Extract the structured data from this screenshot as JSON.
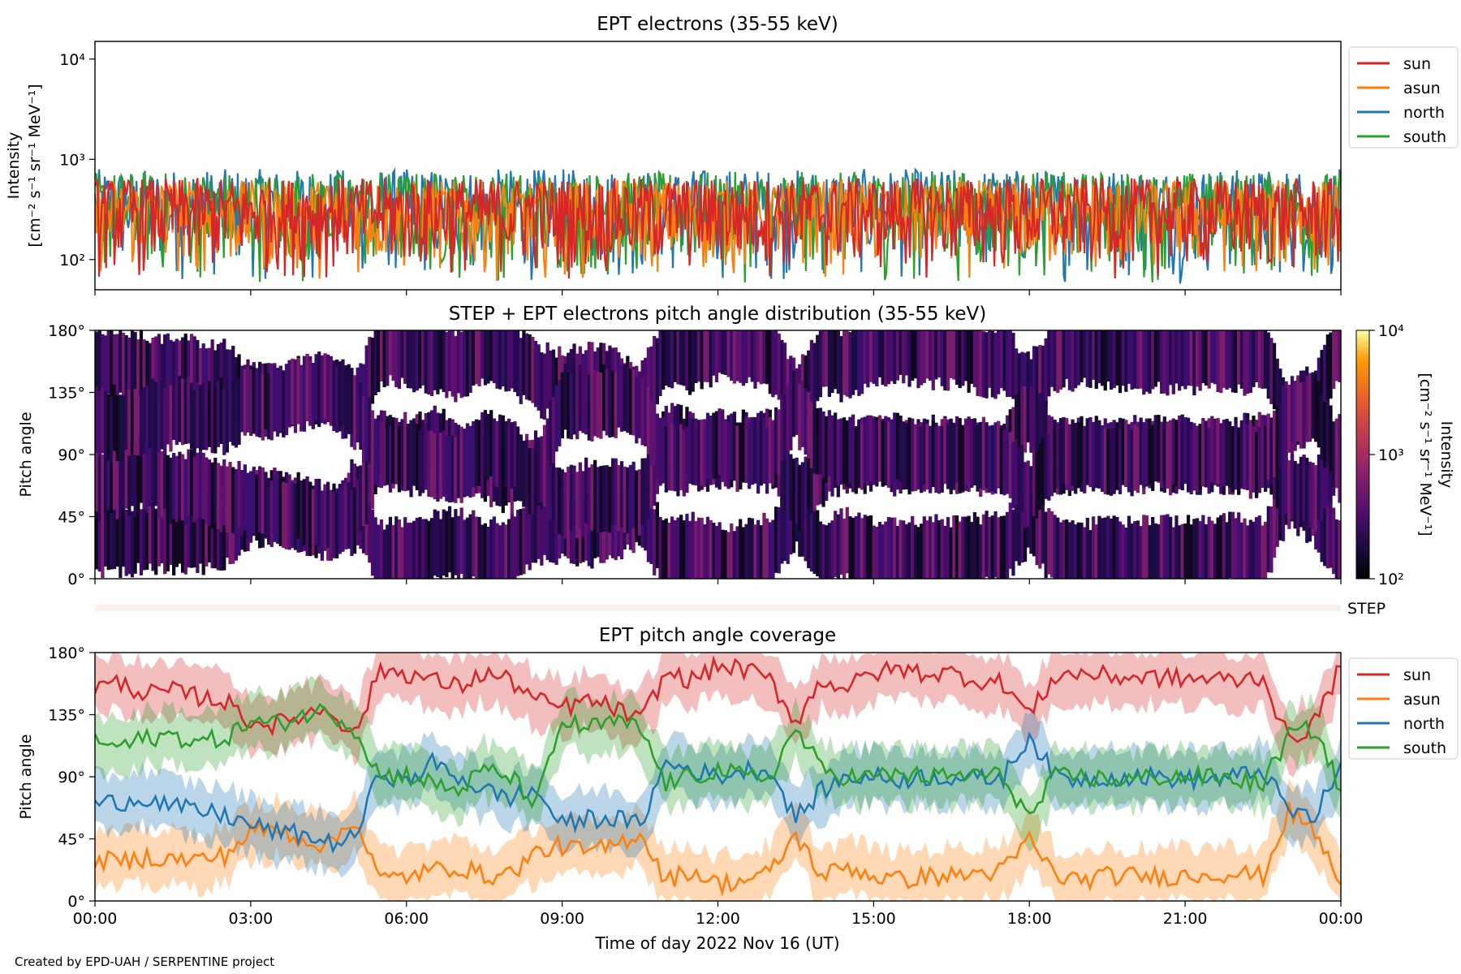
{
  "figure": {
    "footer": "Created by EPD-UAH / SERPENTINE project",
    "xlabel": "Time of day 2022 Nov 16 (UT)",
    "x_ticks": [
      "00:00",
      "03:00",
      "06:00",
      "09:00",
      "12:00",
      "15:00",
      "18:00",
      "21:00",
      "00:00"
    ]
  },
  "chart_data": [
    {
      "type": "line",
      "title": "EPT electrons (35-55 keV)",
      "ylabel_line1": "Intensity",
      "ylabel_line2": "[cm⁻² s⁻¹ sr⁻¹ MeV⁻¹]",
      "yscale": "log",
      "ylim": [
        50,
        15000
      ],
      "y_ticks": [
        {
          "v": 100,
          "label": "10²"
        },
        {
          "v": 1000,
          "label": "10³"
        },
        {
          "v": 10000,
          "label": "10⁴"
        }
      ],
      "xlim_hours": [
        0,
        24
      ],
      "legend_position": "outside-right-top",
      "series": [
        {
          "name": "sun",
          "color": "#d62728",
          "typical_range": [
            60,
            650
          ]
        },
        {
          "name": "asun",
          "color": "#ff7f0e",
          "typical_range": [
            60,
            620
          ]
        },
        {
          "name": "north",
          "color": "#1f77b4",
          "typical_range": [
            55,
            800
          ]
        },
        {
          "name": "south",
          "color": "#2ca02c",
          "typical_range": [
            55,
            750
          ]
        }
      ]
    },
    {
      "type": "heatmap",
      "title": "STEP + EPT electrons pitch angle distribution (35-55 keV)",
      "ylabel": "Pitch angle",
      "ylim": [
        0,
        180
      ],
      "y_ticks": [
        "0°",
        "45°",
        "90°",
        "135°",
        "180°"
      ],
      "colorbar": {
        "label_line1": "Intensity",
        "label_line2": "[cm⁻² s⁻¹ sr⁻¹ MeV⁻¹]",
        "scale": "log",
        "range": [
          100,
          10000
        ],
        "ticks": [
          "10²",
          "10³",
          "10⁴"
        ],
        "colormap": "inferno"
      },
      "typical_intensity": 150,
      "step_label": "STEP"
    },
    {
      "type": "area",
      "title": "EPT pitch angle coverage",
      "ylabel": "Pitch angle",
      "ylim": [
        0,
        180
      ],
      "y_ticks": [
        "0°",
        "45°",
        "90°",
        "135°",
        "180°"
      ],
      "xlim_hours": [
        0,
        24
      ],
      "legend_position": "outside-right-top",
      "series": [
        {
          "name": "sun",
          "color": "#d62728",
          "x": [
            0,
            0.5,
            1,
            1.5,
            2,
            2.5,
            3,
            3.5,
            4,
            4.5,
            5,
            5.5,
            6,
            6.5,
            7,
            7.5,
            8,
            8.5,
            9,
            9.5,
            10,
            10.5,
            11,
            11.5,
            12,
            12.5,
            13,
            13.5,
            14,
            14.5,
            15,
            15.5,
            16,
            16.5,
            17,
            17.5,
            18,
            18.5,
            19,
            19.5,
            20,
            20.5,
            21,
            21.5,
            22,
            22.5,
            23,
            23.5,
            24
          ],
          "y": [
            155,
            158,
            150,
            152,
            148,
            145,
            130,
            128,
            135,
            140,
            120,
            168,
            165,
            160,
            155,
            165,
            160,
            145,
            140,
            145,
            140,
            130,
            165,
            160,
            170,
            168,
            160,
            130,
            160,
            155,
            165,
            168,
            165,
            165,
            160,
            158,
            135,
            163,
            165,
            163,
            162,
            162,
            161,
            161,
            160,
            163,
            115,
            130,
            170
          ]
        },
        {
          "name": "asun",
          "color": "#ff7f0e",
          "x": [
            0,
            0.5,
            1,
            1.5,
            2,
            2.5,
            3,
            3.5,
            4,
            4.5,
            5,
            5.5,
            6,
            6.5,
            7,
            7.5,
            8,
            8.5,
            9,
            9.5,
            10,
            10.5,
            11,
            11.5,
            12,
            12.5,
            13,
            13.5,
            14,
            14.5,
            15,
            15.5,
            16,
            16.5,
            17,
            17.5,
            18,
            18.5,
            19,
            19.5,
            20,
            20.5,
            21,
            21.5,
            22,
            22.5,
            23,
            23.5,
            24
          ],
          "y": [
            30,
            28,
            32,
            30,
            30,
            33,
            50,
            52,
            45,
            40,
            60,
            15,
            18,
            22,
            25,
            18,
            20,
            35,
            40,
            35,
            40,
            50,
            15,
            22,
            12,
            15,
            20,
            48,
            18,
            25,
            18,
            15,
            18,
            18,
            20,
            22,
            45,
            18,
            15,
            18,
            18,
            18,
            18,
            20,
            20,
            18,
            65,
            50,
            12
          ]
        },
        {
          "name": "north",
          "color": "#1f77b4",
          "x": [
            0,
            0.5,
            1,
            1.5,
            2,
            2.5,
            3,
            3.5,
            4,
            4.5,
            5,
            5.5,
            6,
            6.5,
            7,
            7.5,
            8,
            8.5,
            9,
            9.5,
            10,
            10.5,
            11,
            11.5,
            12,
            12.5,
            13,
            13.5,
            14,
            14.5,
            15,
            15.5,
            16,
            16.5,
            17,
            17.5,
            18,
            18.5,
            19,
            19.5,
            20,
            20.5,
            21,
            21.5,
            22,
            22.5,
            23,
            23.5,
            24
          ],
          "y": [
            70,
            72,
            75,
            68,
            65,
            62,
            55,
            50,
            48,
            42,
            45,
            95,
            85,
            100,
            90,
            80,
            75,
            80,
            55,
            60,
            60,
            55,
            100,
            95,
            90,
            95,
            95,
            60,
            80,
            90,
            90,
            88,
            90,
            90,
            88,
            90,
            120,
            90,
            88,
            90,
            90,
            90,
            88,
            88,
            90,
            95,
            65,
            60,
            100
          ]
        },
        {
          "name": "south",
          "color": "#2ca02c",
          "x": [
            0,
            0.5,
            1,
            1.5,
            2,
            2.5,
            3,
            3.5,
            4,
            4.5,
            5,
            5.5,
            6,
            6.5,
            7,
            7.5,
            8,
            8.5,
            9,
            9.5,
            10,
            10.5,
            11,
            11.5,
            12,
            12.5,
            13,
            13.5,
            14,
            14.5,
            15,
            15.5,
            16,
            16.5,
            17,
            17.5,
            18,
            18.5,
            19,
            19.5,
            20,
            20.5,
            21,
            21.5,
            22,
            22.5,
            23,
            23.5,
            24
          ],
          "y": [
            115,
            112,
            118,
            120,
            115,
            118,
            130,
            128,
            135,
            138,
            125,
            90,
            92,
            85,
            80,
            95,
            90,
            70,
            130,
            125,
            130,
            125,
            85,
            90,
            95,
            90,
            90,
            125,
            95,
            90,
            90,
            92,
            90,
            90,
            92,
            90,
            60,
            90,
            90,
            88,
            88,
            90,
            90,
            90,
            88,
            85,
            120,
            125,
            80
          ]
        }
      ]
    }
  ]
}
